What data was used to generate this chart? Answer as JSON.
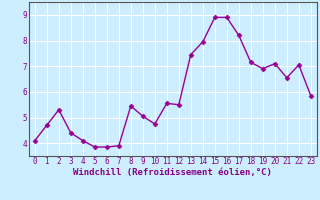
{
  "x": [
    0,
    1,
    2,
    3,
    4,
    5,
    6,
    7,
    8,
    9,
    10,
    11,
    12,
    13,
    14,
    15,
    16,
    17,
    18,
    19,
    20,
    21,
    22,
    23
  ],
  "y": [
    4.1,
    4.7,
    5.3,
    4.4,
    4.1,
    3.85,
    3.85,
    3.9,
    5.45,
    5.05,
    4.75,
    5.55,
    5.5,
    7.45,
    7.95,
    8.9,
    8.9,
    8.2,
    7.15,
    6.9,
    7.1,
    6.55,
    7.05,
    5.85
  ],
  "line_color": "#990099",
  "marker": "D",
  "marker_size": 2.5,
  "background_color": "#cceeff",
  "grid_color": "#aaddcc",
  "xlabel": "Windchill (Refroidissement éolien,°C)",
  "ylabel": "",
  "title": "",
  "xlim": [
    -0.5,
    23.5
  ],
  "ylim": [
    3.5,
    9.5
  ],
  "yticks": [
    4,
    5,
    6,
    7,
    8,
    9
  ],
  "xticks": [
    0,
    1,
    2,
    3,
    4,
    5,
    6,
    7,
    8,
    9,
    10,
    11,
    12,
    13,
    14,
    15,
    16,
    17,
    18,
    19,
    20,
    21,
    22,
    23
  ],
  "tick_label_size": 5.5,
  "xlabel_size": 6.5,
  "line_width": 1.0,
  "spine_color": "#777777",
  "font_color": "#880088"
}
